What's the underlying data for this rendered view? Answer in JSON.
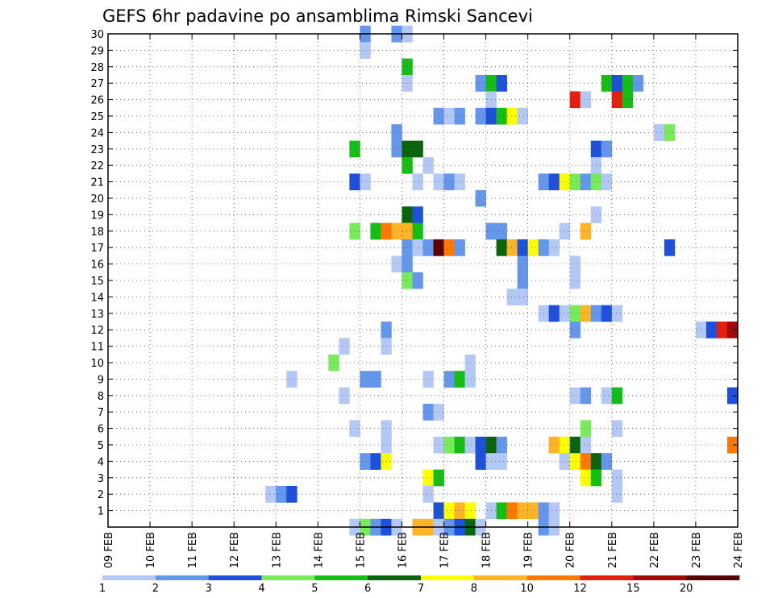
{
  "chart_data": {
    "type": "heatmap",
    "title": "GEFS 6hr padavine po ansamblima Rimski Sancevi",
    "xlabel": "",
    "ylabel": "",
    "x_ticks": [
      "09 FEB",
      "10 FEB",
      "11 FEB",
      "12 FEB",
      "13 FEB",
      "14 FEB",
      "15 FEB",
      "16 FEB",
      "17 FEB",
      "18 FEB",
      "19 FEB",
      "20 FEB",
      "21 FEB",
      "22 FEB",
      "23 FEB",
      "24 FEB"
    ],
    "y_ticks": [
      "1",
      "2",
      "3",
      "4",
      "5",
      "6",
      "7",
      "8",
      "9",
      "10",
      "11",
      "12",
      "13",
      "14",
      "15",
      "16",
      "17",
      "18",
      "19",
      "20",
      "21",
      "22",
      "23",
      "24",
      "25",
      "26",
      "27",
      "28",
      "29",
      "30"
    ],
    "x_range": [
      "09 FEB 00Z",
      "24 FEB 00Z"
    ],
    "y_range": [
      0,
      30
    ],
    "grid": true,
    "colorbar": {
      "labels": [
        "1",
        "2",
        "3",
        "4",
        "5",
        "6",
        "7",
        "8",
        "10",
        "12",
        "15",
        "20"
      ],
      "colors": [
        "#b4c8f5",
        "#6496eb",
        "#1e50dc",
        "#78eb5a",
        "#14be14",
        "#0a640a",
        "#ffff00",
        "#ffb428",
        "#ff7800",
        "#e61e0a",
        "#a00a0a",
        "#5a0000"
      ]
    },
    "value_class_colors": {
      "1": "#b4c8f5",
      "2": "#6496eb",
      "3": "#1e50dc",
      "4": "#78eb5a",
      "5": "#14be14",
      "6": "#0a640a",
      "7": "#ffff00",
      "8": "#ffb428",
      "9": "#ff7800",
      "10": "#e61e0a",
      "11": "#a00a0a",
      "12": "#5a0000"
    },
    "cells": [
      {
        "member": 30,
        "step": 24,
        "class": 2
      },
      {
        "member": 30,
        "step": 27,
        "class": 2
      },
      {
        "member": 30,
        "step": 28,
        "class": 1
      },
      {
        "member": 29,
        "step": 24,
        "class": 1
      },
      {
        "member": 28,
        "step": 28,
        "class": 5
      },
      {
        "member": 27,
        "step": 28,
        "class": 1
      },
      {
        "member": 27,
        "step": 35,
        "class": 2
      },
      {
        "member": 27,
        "step": 36,
        "class": 5
      },
      {
        "member": 27,
        "step": 37,
        "class": 3
      },
      {
        "member": 27,
        "step": 47,
        "class": 5
      },
      {
        "member": 27,
        "step": 48,
        "class": 3
      },
      {
        "member": 27,
        "step": 49,
        "class": 5
      },
      {
        "member": 27,
        "step": 50,
        "class": 2
      },
      {
        "member": 26,
        "step": 36,
        "class": 1
      },
      {
        "member": 26,
        "step": 44,
        "class": 10
      },
      {
        "member": 26,
        "step": 45,
        "class": 1
      },
      {
        "member": 26,
        "step": 48,
        "class": 10
      },
      {
        "member": 26,
        "step": 49,
        "class": 5
      },
      {
        "member": 25,
        "step": 31,
        "class": 2
      },
      {
        "member": 25,
        "step": 32,
        "class": 1
      },
      {
        "member": 25,
        "step": 33,
        "class": 2
      },
      {
        "member": 25,
        "step": 35,
        "class": 2
      },
      {
        "member": 25,
        "step": 36,
        "class": 3
      },
      {
        "member": 25,
        "step": 37,
        "class": 5
      },
      {
        "member": 25,
        "step": 38,
        "class": 7
      },
      {
        "member": 25,
        "step": 39,
        "class": 1
      },
      {
        "member": 24,
        "step": 27,
        "class": 2
      },
      {
        "member": 24,
        "step": 52,
        "class": 1
      },
      {
        "member": 24,
        "step": 53,
        "class": 4
      },
      {
        "member": 23,
        "step": 23,
        "class": 5
      },
      {
        "member": 23,
        "step": 27,
        "class": 2
      },
      {
        "member": 23,
        "step": 28,
        "class": 6
      },
      {
        "member": 23,
        "step": 29,
        "class": 6
      },
      {
        "member": 23,
        "step": 46,
        "class": 3
      },
      {
        "member": 23,
        "step": 47,
        "class": 2
      },
      {
        "member": 22,
        "step": 28,
        "class": 5
      },
      {
        "member": 22,
        "step": 30,
        "class": 1
      },
      {
        "member": 22,
        "step": 46,
        "class": 1
      },
      {
        "member": 21,
        "step": 23,
        "class": 3
      },
      {
        "member": 21,
        "step": 24,
        "class": 1
      },
      {
        "member": 21,
        "step": 29,
        "class": 1
      },
      {
        "member": 21,
        "step": 31,
        "class": 1
      },
      {
        "member": 21,
        "step": 32,
        "class": 2
      },
      {
        "member": 21,
        "step": 33,
        "class": 1
      },
      {
        "member": 21,
        "step": 41,
        "class": 2
      },
      {
        "member": 21,
        "step": 42,
        "class": 3
      },
      {
        "member": 21,
        "step": 43,
        "class": 7
      },
      {
        "member": 21,
        "step": 44,
        "class": 4
      },
      {
        "member": 21,
        "step": 45,
        "class": 2
      },
      {
        "member": 21,
        "step": 46,
        "class": 4
      },
      {
        "member": 21,
        "step": 47,
        "class": 1
      },
      {
        "member": 20,
        "step": 35,
        "class": 2
      },
      {
        "member": 19,
        "step": 28,
        "class": 6
      },
      {
        "member": 19,
        "step": 29,
        "class": 3
      },
      {
        "member": 19,
        "step": 46,
        "class": 1
      },
      {
        "member": 18,
        "step": 23,
        "class": 4
      },
      {
        "member": 18,
        "step": 25,
        "class": 5
      },
      {
        "member": 18,
        "step": 26,
        "class": 9
      },
      {
        "member": 18,
        "step": 27,
        "class": 8
      },
      {
        "member": 18,
        "step": 28,
        "class": 8
      },
      {
        "member": 18,
        "step": 29,
        "class": 5
      },
      {
        "member": 18,
        "step": 36,
        "class": 2
      },
      {
        "member": 18,
        "step": 37,
        "class": 2
      },
      {
        "member": 18,
        "step": 43,
        "class": 1
      },
      {
        "member": 18,
        "step": 45,
        "class": 8
      },
      {
        "member": 17,
        "step": 28,
        "class": 2
      },
      {
        "member": 17,
        "step": 29,
        "class": 1
      },
      {
        "member": 17,
        "step": 30,
        "class": 2
      },
      {
        "member": 17,
        "step": 31,
        "class": 12
      },
      {
        "member": 17,
        "step": 32,
        "class": 9
      },
      {
        "member": 17,
        "step": 33,
        "class": 2
      },
      {
        "member": 17,
        "step": 37,
        "class": 6
      },
      {
        "member": 17,
        "step": 38,
        "class": 8
      },
      {
        "member": 17,
        "step": 39,
        "class": 3
      },
      {
        "member": 17,
        "step": 40,
        "class": 7
      },
      {
        "member": 17,
        "step": 41,
        "class": 2
      },
      {
        "member": 17,
        "step": 42,
        "class": 1
      },
      {
        "member": 17,
        "step": 53,
        "class": 3
      },
      {
        "member": 16,
        "step": 27,
        "class": 1
      },
      {
        "member": 16,
        "step": 28,
        "class": 2
      },
      {
        "member": 16,
        "step": 39,
        "class": 2
      },
      {
        "member": 16,
        "step": 44,
        "class": 1
      },
      {
        "member": 15,
        "step": 28,
        "class": 4
      },
      {
        "member": 15,
        "step": 29,
        "class": 2
      },
      {
        "member": 15,
        "step": 39,
        "class": 2
      },
      {
        "member": 15,
        "step": 44,
        "class": 1
      },
      {
        "member": 14,
        "step": 38,
        "class": 1
      },
      {
        "member": 14,
        "step": 39,
        "class": 1
      },
      {
        "member": 13,
        "step": 41,
        "class": 1
      },
      {
        "member": 13,
        "step": 42,
        "class": 3
      },
      {
        "member": 13,
        "step": 43,
        "class": 1
      },
      {
        "member": 13,
        "step": 44,
        "class": 4
      },
      {
        "member": 13,
        "step": 45,
        "class": 8
      },
      {
        "member": 13,
        "step": 46,
        "class": 2
      },
      {
        "member": 13,
        "step": 47,
        "class": 3
      },
      {
        "member": 13,
        "step": 48,
        "class": 1
      },
      {
        "member": 12,
        "step": 26,
        "class": 2
      },
      {
        "member": 12,
        "step": 44,
        "class": 2
      },
      {
        "member": 12,
        "step": 56,
        "class": 1
      },
      {
        "member": 12,
        "step": 57,
        "class": 3
      },
      {
        "member": 12,
        "step": 58,
        "class": 10
      },
      {
        "member": 12,
        "step": 59,
        "class": 11
      },
      {
        "member": 11,
        "step": 22,
        "class": 1
      },
      {
        "member": 11,
        "step": 26,
        "class": 1
      },
      {
        "member": 10,
        "step": 21,
        "class": 4
      },
      {
        "member": 10,
        "step": 34,
        "class": 1
      },
      {
        "member": 9,
        "step": 17,
        "class": 1
      },
      {
        "member": 9,
        "step": 24,
        "class": 2
      },
      {
        "member": 9,
        "step": 25,
        "class": 2
      },
      {
        "member": 9,
        "step": 30,
        "class": 1
      },
      {
        "member": 9,
        "step": 32,
        "class": 2
      },
      {
        "member": 9,
        "step": 33,
        "class": 5
      },
      {
        "member": 9,
        "step": 34,
        "class": 1
      },
      {
        "member": 8,
        "step": 22,
        "class": 1
      },
      {
        "member": 8,
        "step": 44,
        "class": 1
      },
      {
        "member": 8,
        "step": 45,
        "class": 2
      },
      {
        "member": 8,
        "step": 47,
        "class": 1
      },
      {
        "member": 8,
        "step": 48,
        "class": 5
      },
      {
        "member": 8,
        "step": 59,
        "class": 3
      },
      {
        "member": 7,
        "step": 30,
        "class": 2
      },
      {
        "member": 7,
        "step": 31,
        "class": 1
      },
      {
        "member": 6,
        "step": 23,
        "class": 1
      },
      {
        "member": 6,
        "step": 26,
        "class": 1
      },
      {
        "member": 6,
        "step": 45,
        "class": 4
      },
      {
        "member": 6,
        "step": 48,
        "class": 1
      },
      {
        "member": 5,
        "step": 26,
        "class": 1
      },
      {
        "member": 5,
        "step": 31,
        "class": 1
      },
      {
        "member": 5,
        "step": 32,
        "class": 4
      },
      {
        "member": 5,
        "step": 33,
        "class": 5
      },
      {
        "member": 5,
        "step": 34,
        "class": 1
      },
      {
        "member": 5,
        "step": 35,
        "class": 3
      },
      {
        "member": 5,
        "step": 36,
        "class": 6
      },
      {
        "member": 5,
        "step": 37,
        "class": 2
      },
      {
        "member": 5,
        "step": 42,
        "class": 8
      },
      {
        "member": 5,
        "step": 43,
        "class": 7
      },
      {
        "member": 5,
        "step": 44,
        "class": 6
      },
      {
        "member": 5,
        "step": 45,
        "class": 1
      },
      {
        "member": 5,
        "step": 59,
        "class": 9
      },
      {
        "member": 4,
        "step": 24,
        "class": 2
      },
      {
        "member": 4,
        "step": 25,
        "class": 3
      },
      {
        "member": 4,
        "step": 26,
        "class": 7
      },
      {
        "member": 4,
        "step": 35,
        "class": 3
      },
      {
        "member": 4,
        "step": 36,
        "class": 1
      },
      {
        "member": 4,
        "step": 37,
        "class": 1
      },
      {
        "member": 4,
        "step": 43,
        "class": 1
      },
      {
        "member": 4,
        "step": 44,
        "class": 7
      },
      {
        "member": 4,
        "step": 45,
        "class": 9
      },
      {
        "member": 4,
        "step": 46,
        "class": 6
      },
      {
        "member": 4,
        "step": 47,
        "class": 2
      },
      {
        "member": 3,
        "step": 30,
        "class": 7
      },
      {
        "member": 3,
        "step": 31,
        "class": 5
      },
      {
        "member": 3,
        "step": 45,
        "class": 7
      },
      {
        "member": 3,
        "step": 46,
        "class": 5
      },
      {
        "member": 3,
        "step": 48,
        "class": 1
      },
      {
        "member": 2,
        "step": 15,
        "class": 1
      },
      {
        "member": 2,
        "step": 16,
        "class": 2
      },
      {
        "member": 2,
        "step": 17,
        "class": 3
      },
      {
        "member": 2,
        "step": 30,
        "class": 1
      },
      {
        "member": 2,
        "step": 48,
        "class": 1
      },
      {
        "member": 1,
        "step": 31,
        "class": 3
      },
      {
        "member": 1,
        "step": 32,
        "class": 7
      },
      {
        "member": 1,
        "step": 33,
        "class": 8
      },
      {
        "member": 1,
        "step": 34,
        "class": 7
      },
      {
        "member": 1,
        "step": 36,
        "class": 1
      },
      {
        "member": 1,
        "step": 37,
        "class": 5
      },
      {
        "member": 1,
        "step": 38,
        "class": 9
      },
      {
        "member": 1,
        "step": 39,
        "class": 8
      },
      {
        "member": 1,
        "step": 40,
        "class": 8
      },
      {
        "member": 1,
        "step": 41,
        "class": 2
      },
      {
        "member": 1,
        "step": 42,
        "class": 1
      },
      {
        "member": 0,
        "step": 23,
        "class": 1
      },
      {
        "member": 0,
        "step": 24,
        "class": 4
      },
      {
        "member": 0,
        "step": 25,
        "class": 2
      },
      {
        "member": 0,
        "step": 26,
        "class": 3
      },
      {
        "member": 0,
        "step": 27,
        "class": 1
      },
      {
        "member": 0,
        "step": 29,
        "class": 8
      },
      {
        "member": 0,
        "step": 30,
        "class": 8
      },
      {
        "member": 0,
        "step": 31,
        "class": 1
      },
      {
        "member": 0,
        "step": 32,
        "class": 2
      },
      {
        "member": 0,
        "step": 33,
        "class": 3
      },
      {
        "member": 0,
        "step": 34,
        "class": 6
      },
      {
        "member": 0,
        "step": 35,
        "class": 1
      },
      {
        "member": 0,
        "step": 41,
        "class": 2
      },
      {
        "member": 0,
        "step": 42,
        "class": 1
      }
    ]
  }
}
